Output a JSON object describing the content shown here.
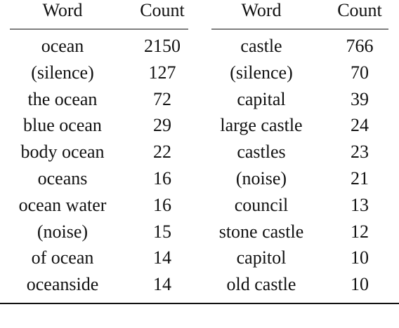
{
  "table": {
    "left": {
      "headers": [
        "Word",
        "Count"
      ],
      "rows": [
        [
          "ocean",
          "2150"
        ],
        [
          "(silence)",
          "127"
        ],
        [
          "the ocean",
          "72"
        ],
        [
          "blue ocean",
          "29"
        ],
        [
          "body ocean",
          "22"
        ],
        [
          "oceans",
          "16"
        ],
        [
          "ocean water",
          "16"
        ],
        [
          "(noise)",
          "15"
        ],
        [
          "of ocean",
          "14"
        ],
        [
          "oceanside",
          "14"
        ]
      ]
    },
    "right": {
      "headers": [
        "Word",
        "Count"
      ],
      "rows": [
        [
          "castle",
          "766"
        ],
        [
          "(silence)",
          "70"
        ],
        [
          "capital",
          "39"
        ],
        [
          "large castle",
          "24"
        ],
        [
          "castles",
          "23"
        ],
        [
          "(noise)",
          "21"
        ],
        [
          "council",
          "13"
        ],
        [
          "stone castle",
          "12"
        ],
        [
          "capitol",
          "10"
        ],
        [
          "old castle",
          "10"
        ]
      ]
    }
  }
}
